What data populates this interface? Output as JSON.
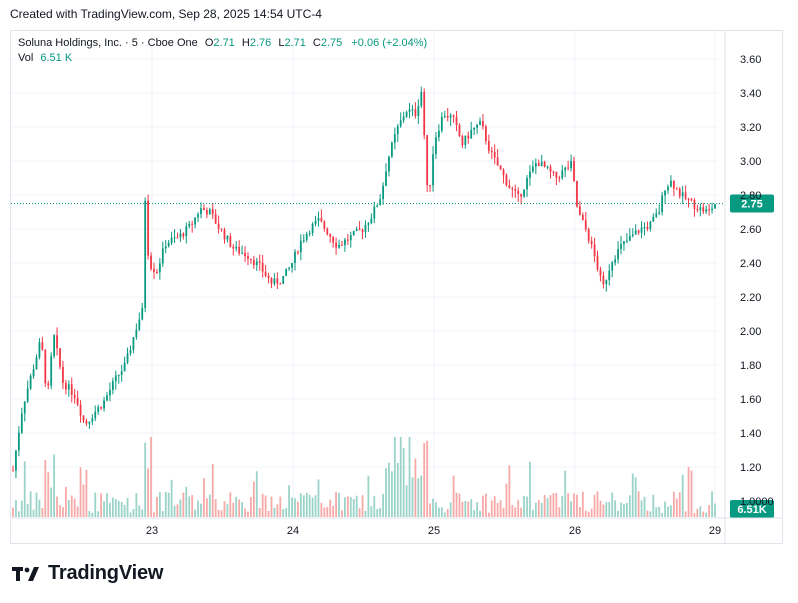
{
  "caption": "Created with TradingView.com, Sep 28, 2025 14:54 UTC-4",
  "legend": {
    "symbol": "Soluna Holdings, Inc. · 5 · Cboe One",
    "o_label": "O",
    "o": "2.71",
    "h_label": "H",
    "h": "2.76",
    "l_label": "L",
    "l": "2.71",
    "c_label": "C",
    "c": "2.75",
    "change": "+0.06 (+2.04%)",
    "vol_label": "Vol",
    "vol": "6.51 K"
  },
  "logo_text": "TradingView",
  "colors": {
    "up": "#089981",
    "down": "#f23645",
    "up_vol": "#9ad3c8",
    "down_vol": "#f7a9a7",
    "grid": "#f0f3fa",
    "price_line": "#089981"
  },
  "chart_data": {
    "type": "candlestick",
    "y_ticks": [
      "3.60",
      "3.40",
      "3.20",
      "3.00",
      "2.80",
      "2.60",
      "2.40",
      "2.20",
      "2.00",
      "1.80",
      "1.60",
      "1.40",
      "1.20",
      "1.0000"
    ],
    "y_range": [
      1.0,
      3.6
    ],
    "x_ticks": [
      "23",
      "24",
      "25",
      "26",
      "29"
    ],
    "last_price_label": "2.75",
    "last_volume_label": "6.51K",
    "close_path": [
      [
        0,
        1.18
      ],
      [
        6,
        1.55
      ],
      [
        12,
        1.75
      ],
      [
        18,
        1.95
      ],
      [
        22,
        1.6
      ],
      [
        26,
        1.98
      ],
      [
        32,
        1.7
      ],
      [
        40,
        1.62
      ],
      [
        46,
        1.45
      ],
      [
        52,
        1.52
      ],
      [
        58,
        1.58
      ],
      [
        66,
        1.72
      ],
      [
        72,
        1.8
      ],
      [
        80,
        2.05
      ],
      [
        83,
        2.12
      ],
      [
        84,
        2.9
      ],
      [
        87,
        2.4
      ],
      [
        92,
        2.35
      ],
      [
        98,
        2.52
      ],
      [
        106,
        2.55
      ],
      [
        114,
        2.62
      ],
      [
        120,
        2.72
      ],
      [
        126,
        2.7
      ],
      [
        134,
        2.58
      ],
      [
        142,
        2.48
      ],
      [
        150,
        2.45
      ],
      [
        158,
        2.38
      ],
      [
        166,
        2.28
      ],
      [
        172,
        2.3
      ],
      [
        178,
        2.38
      ],
      [
        184,
        2.52
      ],
      [
        190,
        2.6
      ],
      [
        196,
        2.65
      ],
      [
        202,
        2.58
      ],
      [
        208,
        2.5
      ],
      [
        216,
        2.55
      ],
      [
        224,
        2.6
      ],
      [
        230,
        2.68
      ],
      [
        236,
        2.8
      ],
      [
        240,
        3.0
      ],
      [
        246,
        3.18
      ],
      [
        252,
        3.3
      ],
      [
        258,
        3.28
      ],
      [
        262,
        3.42
      ],
      [
        266,
        2.75
      ],
      [
        270,
        3.12
      ],
      [
        276,
        3.28
      ],
      [
        282,
        3.25
      ],
      [
        288,
        3.1
      ],
      [
        294,
        3.18
      ],
      [
        300,
        3.22
      ],
      [
        306,
        3.05
      ],
      [
        312,
        2.95
      ],
      [
        318,
        2.85
      ],
      [
        324,
        2.78
      ],
      [
        330,
        2.9
      ],
      [
        336,
        3.0
      ],
      [
        342,
        2.95
      ],
      [
        348,
        2.9
      ],
      [
        354,
        2.95
      ],
      [
        358,
        2.98
      ],
      [
        362,
        2.7
      ],
      [
        368,
        2.58
      ],
      [
        374,
        2.4
      ],
      [
        378,
        2.25
      ],
      [
        384,
        2.42
      ],
      [
        390,
        2.5
      ],
      [
        396,
        2.55
      ],
      [
        402,
        2.6
      ],
      [
        408,
        2.62
      ],
      [
        414,
        2.7
      ],
      [
        418,
        2.85
      ],
      [
        422,
        2.88
      ],
      [
        428,
        2.8
      ],
      [
        434,
        2.76
      ],
      [
        440,
        2.72
      ],
      [
        446,
        2.7
      ],
      [
        450,
        2.75
      ]
    ]
  }
}
